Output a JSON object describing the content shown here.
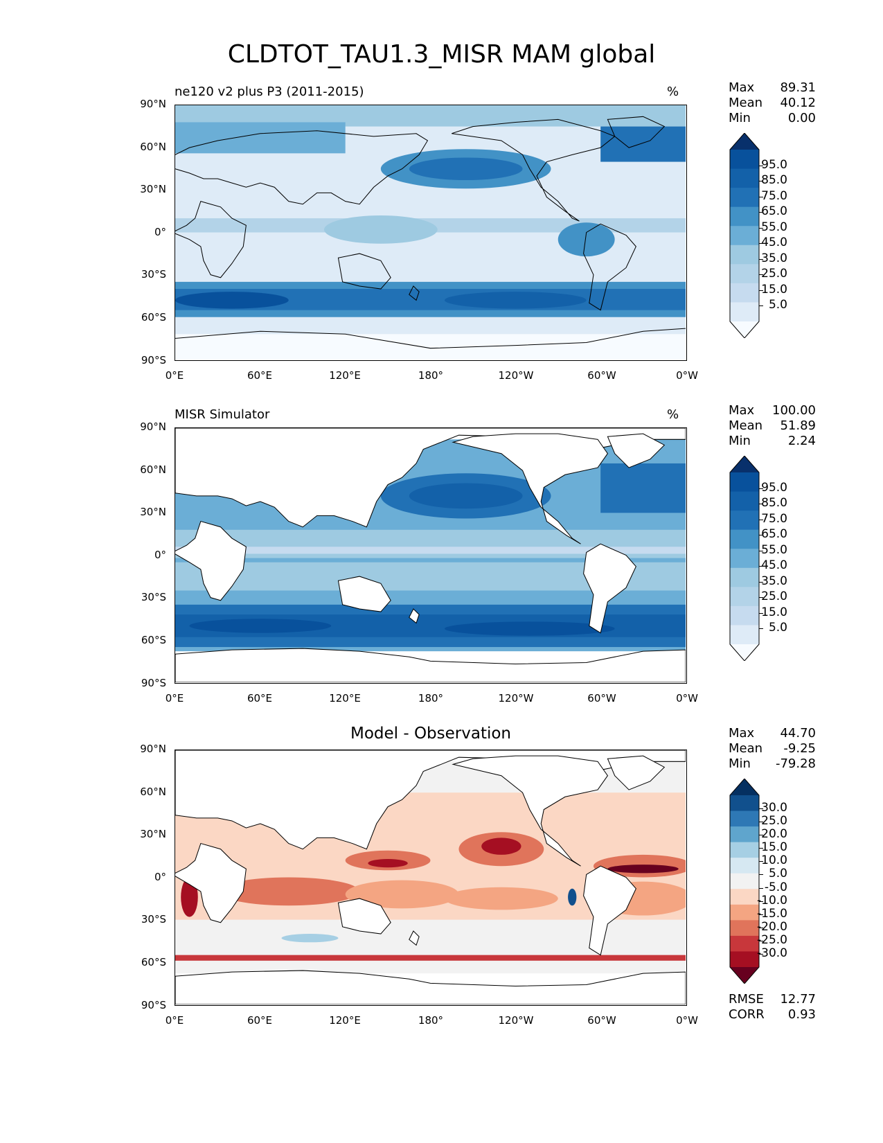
{
  "title": "CLDTOT_TAU1.3_MISR MAM global",
  "lat_labels": [
    "90°N",
    "60°N",
    "30°N",
    "0°",
    "30°S",
    "60°S",
    "90°S"
  ],
  "lon_labels": [
    "0°E",
    "60°E",
    "120°E",
    "180°",
    "120°W",
    "60°W",
    "0°W"
  ],
  "panels": [
    {
      "title_left": "ne120 v2 plus P3 (2011-2015)",
      "title_right": "%",
      "stats": [
        {
          "label": "Max",
          "value": "89.31"
        },
        {
          "label": "Mean",
          "value": "40.12"
        },
        {
          "label": "Min",
          "value": "0.00"
        }
      ],
      "colorbar_labels": [
        "95.0",
        "85.0",
        "75.0",
        "65.0",
        "55.0",
        "45.0",
        "35.0",
        "25.0",
        "15.0",
        "5.0"
      ]
    },
    {
      "title_left": "MISR Simulator",
      "title_right": "%",
      "stats": [
        {
          "label": "Max",
          "value": "100.00"
        },
        {
          "label": "Mean",
          "value": "51.89"
        },
        {
          "label": "Min",
          "value": "2.24"
        }
      ],
      "colorbar_labels": [
        "95.0",
        "85.0",
        "75.0",
        "65.0",
        "55.0",
        "45.0",
        "35.0",
        "25.0",
        "15.0",
        "5.0"
      ]
    },
    {
      "title_center": "Model - Observation",
      "stats": [
        {
          "label": "Max",
          "value": "44.70"
        },
        {
          "label": "Mean",
          "value": "-9.25"
        },
        {
          "label": "Min",
          "value": "-79.28"
        }
      ],
      "colorbar_labels": [
        "30.0",
        "25.0",
        "20.0",
        "15.0",
        "10.0",
        "5.0",
        "-5.0",
        "-10.0",
        "-15.0",
        "-20.0",
        "-25.0",
        "-30.0"
      ],
      "metrics": [
        {
          "label": "RMSE",
          "value": "12.77"
        },
        {
          "label": "CORR",
          "value": "0.93"
        }
      ]
    }
  ],
  "colors": {
    "blues": [
      "#f7fbff",
      "#deebf7",
      "#c6dbef",
      "#b3d3e8",
      "#9ecae1",
      "#6baed6",
      "#4292c6",
      "#2171b5",
      "#1361a9",
      "#08519c",
      "#08306b"
    ],
    "rdbu": [
      "#67001f",
      "#a50f22",
      "#c8373b",
      "#e0745b",
      "#f4a582",
      "#fbd7c4",
      "#f2f2f2",
      "#d6e8f2",
      "#a6cfe4",
      "#5fa5cd",
      "#2e78b5",
      "#11508d",
      "#053061"
    ],
    "land": "#ffffff",
    "coast": "#000000"
  }
}
